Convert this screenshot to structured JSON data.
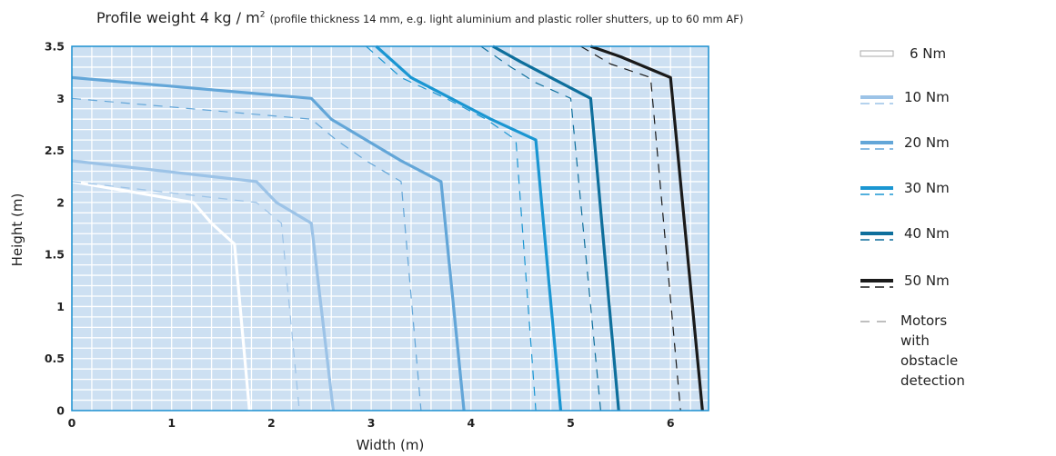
{
  "title": {
    "main": "Profile weight 4 kg / m",
    "sup": "2",
    "note": "(profile thickness 14 mm, e.g. light aluminium and plastic roller shutters, up to 60 mm AF)"
  },
  "colors": {
    "plot_background": "#cde0f2",
    "grid": "#ffffff",
    "6Nm": "#ffffff",
    "10Nm": "#9cc3e7",
    "20Nm": "#63a6d8",
    "30Nm": "#1a96d2",
    "40Nm": "#0e6f9c",
    "50Nm": "#1a1a1a",
    "obstacle_legend": "#aaaaaa"
  },
  "legend": [
    {
      "key": "6Nm",
      "label": "6 Nm"
    },
    {
      "key": "10Nm",
      "label": "10 Nm"
    },
    {
      "key": "20Nm",
      "label": "20 Nm"
    },
    {
      "key": "30Nm",
      "label": "30 Nm"
    },
    {
      "key": "40Nm",
      "label": "40 Nm"
    },
    {
      "key": "50Nm",
      "label": "50 Nm"
    }
  ],
  "legend_note": {
    "line1": "Motors with",
    "line2": "obstacle detection"
  },
  "chart_data": {
    "type": "line",
    "title": "Profile weight 4 kg / m2",
    "xlabel": "Width (m)",
    "ylabel": "Height (m)",
    "xlim": [
      0,
      6.4
    ],
    "ylim": [
      0,
      3.5
    ],
    "xticks": [
      "0",
      "1",
      "2",
      "3",
      "4",
      "5",
      "6"
    ],
    "yticks": [
      "0",
      "0.5",
      "1",
      "1.5",
      "2",
      "2.5",
      "3",
      "3.5"
    ],
    "grid": true,
    "legend_position": "right",
    "series": [
      {
        "name": "6 Nm",
        "color_key": "6Nm",
        "dashed": false,
        "points": [
          [
            0,
            2.2
          ],
          [
            1.22,
            2.0
          ],
          [
            1.4,
            1.8
          ],
          [
            1.63,
            1.6
          ],
          [
            1.78,
            0
          ]
        ]
      },
      {
        "name": "10 Nm",
        "color_key": "10Nm",
        "dashed": false,
        "points": [
          [
            0,
            2.4
          ],
          [
            1.85,
            2.2
          ],
          [
            2.05,
            2.0
          ],
          [
            2.4,
            1.8
          ],
          [
            2.62,
            0
          ]
        ]
      },
      {
        "name": "10 Nm",
        "color_key": "10Nm",
        "dashed": true,
        "points": [
          [
            0,
            2.2
          ],
          [
            1.85,
            2.0
          ],
          [
            2.1,
            1.8
          ],
          [
            2.28,
            0
          ]
        ]
      },
      {
        "name": "20 Nm",
        "color_key": "20Nm",
        "dashed": false,
        "points": [
          [
            0,
            3.2
          ],
          [
            2.4,
            3.0
          ],
          [
            2.6,
            2.8
          ],
          [
            2.95,
            2.6
          ],
          [
            3.3,
            2.4
          ],
          [
            3.7,
            2.2
          ],
          [
            3.93,
            0
          ]
        ]
      },
      {
        "name": "20 Nm",
        "color_key": "20Nm",
        "dashed": true,
        "points": [
          [
            0,
            3.0
          ],
          [
            2.4,
            2.8
          ],
          [
            2.65,
            2.6
          ],
          [
            2.95,
            2.4
          ],
          [
            3.3,
            2.2
          ],
          [
            3.5,
            0
          ]
        ]
      },
      {
        "name": "30 Nm",
        "color_key": "30Nm",
        "dashed": false,
        "points": [
          [
            3.05,
            3.5
          ],
          [
            3.4,
            3.2
          ],
          [
            3.8,
            3.0
          ],
          [
            4.2,
            2.8
          ],
          [
            4.65,
            2.6
          ],
          [
            4.9,
            0
          ]
        ]
      },
      {
        "name": "30 Nm",
        "color_key": "30Nm",
        "dashed": true,
        "points": [
          [
            2.95,
            3.5
          ],
          [
            3.3,
            3.2
          ],
          [
            3.75,
            3.0
          ],
          [
            4.15,
            2.8
          ],
          [
            4.45,
            2.6
          ],
          [
            4.65,
            0
          ]
        ]
      },
      {
        "name": "40 Nm",
        "color_key": "40Nm",
        "dashed": false,
        "points": [
          [
            4.22,
            3.5
          ],
          [
            4.5,
            3.35
          ],
          [
            4.8,
            3.2
          ],
          [
            5.2,
            3.0
          ],
          [
            5.48,
            0
          ]
        ]
      },
      {
        "name": "40 Nm",
        "color_key": "40Nm",
        "dashed": true,
        "points": [
          [
            4.1,
            3.5
          ],
          [
            4.4,
            3.3
          ],
          [
            4.65,
            3.15
          ],
          [
            5.0,
            3.0
          ],
          [
            5.3,
            0
          ]
        ]
      },
      {
        "name": "50 Nm",
        "color_key": "50Nm",
        "dashed": false,
        "points": [
          [
            5.2,
            3.5
          ],
          [
            5.5,
            3.4
          ],
          [
            6.0,
            3.2
          ],
          [
            6.32,
            0
          ]
        ]
      },
      {
        "name": "50 Nm",
        "color_key": "50Nm",
        "dashed": true,
        "points": [
          [
            5.1,
            3.5
          ],
          [
            5.4,
            3.33
          ],
          [
            5.8,
            3.2
          ],
          [
            6.1,
            0
          ]
        ]
      }
    ]
  }
}
